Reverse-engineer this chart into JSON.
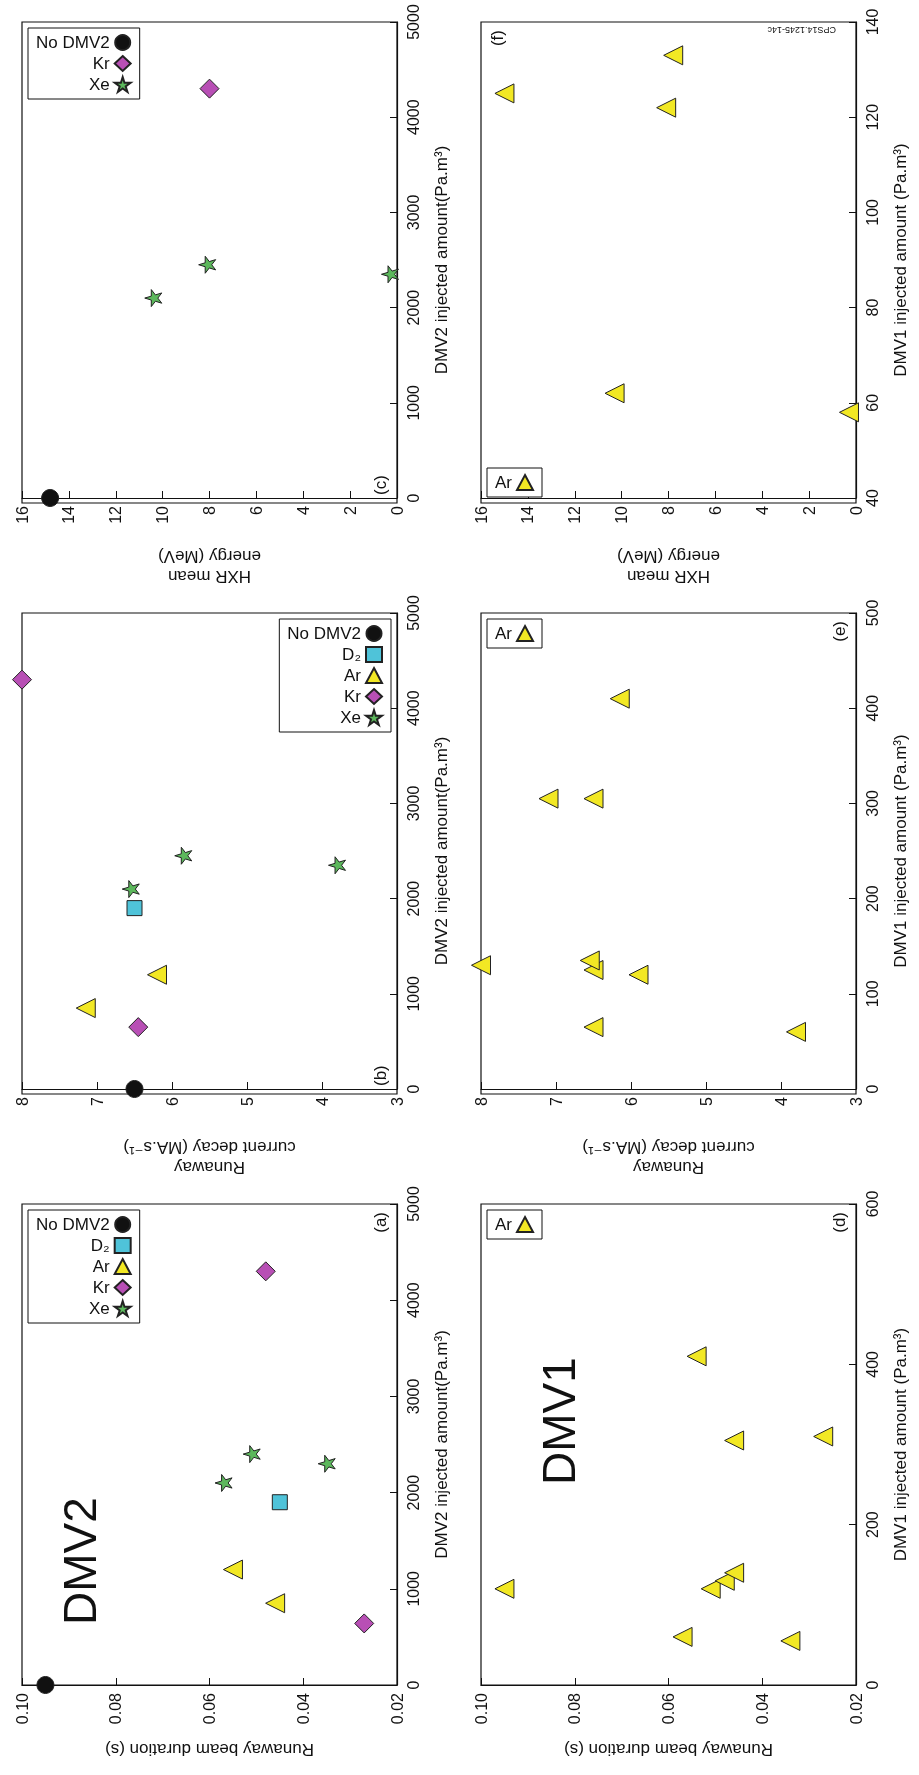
{
  "chart_data": [
    {
      "type": "scatter",
      "xlabel": "Runaway beam duration (s)",
      "ylabel": "DMV2 injected amount(Pa.m³)",
      "xlim": [
        0.1,
        0.02
      ],
      "xticks": [
        {
          "value": 0.1,
          "label": "0.10"
        },
        0.08,
        0.06,
        0.04,
        0.02
      ],
      "ylim": [
        0,
        5000
      ],
      "yticks": [
        0,
        1000,
        2000,
        3000,
        4000,
        5000
      ],
      "legend": "top left",
      "annotations": [
        "(a)",
        "DMV2"
      ],
      "series": [
        {
          "name": "No DMV2",
          "color": "#111111",
          "marker": "circle",
          "x": [
            0.095
          ],
          "values": [
            0
          ]
        },
        {
          "name": "D₂",
          "color": "#4fc3d9",
          "marker": "square",
          "x": [
            0.045
          ],
          "values": [
            1900
          ]
        },
        {
          "name": "Ar",
          "color": "#f2e824",
          "marker": "triangle",
          "x": [
            0.046,
            0.055
          ],
          "values": [
            850,
            1200
          ]
        },
        {
          "name": "Kr",
          "color": "#b84fb5",
          "marker": "diamond",
          "x": [
            0.027,
            0.048
          ],
          "values": [
            640,
            4300
          ]
        },
        {
          "name": "Xe",
          "color": "#5cb85c",
          "marker": "star",
          "x": [
            0.057,
            0.051,
            0.035
          ],
          "values": [
            2100,
            2400,
            2300
          ]
        }
      ]
    },
    {
      "type": "scatter",
      "xlabel": "Runaway\ncurrent decay (MA.s⁻¹)",
      "ylabel": "DMV2 injected amount(Pa.m³)",
      "xlim": [
        8,
        3
      ],
      "xticks": [
        8,
        7,
        6,
        5,
        4,
        3
      ],
      "ylim": [
        0,
        5000
      ],
      "yticks": [
        0,
        1000,
        2000,
        3000,
        4000,
        5000
      ],
      "legend": "top right",
      "annotations": [
        "(b)"
      ],
      "series": [
        {
          "name": "No DMV2",
          "color": "#111111",
          "marker": "circle",
          "x": [
            6.5
          ],
          "values": [
            0
          ]
        },
        {
          "name": "D₂",
          "color": "#4fc3d9",
          "marker": "square",
          "x": [
            6.5
          ],
          "values": [
            1900
          ]
        },
        {
          "name": "Ar",
          "color": "#f2e824",
          "marker": "triangle",
          "x": [
            7.15,
            6.2
          ],
          "values": [
            850,
            1200
          ]
        },
        {
          "name": "Kr",
          "color": "#b84fb5",
          "marker": "diamond",
          "x": [
            6.45,
            8.0
          ],
          "values": [
            650,
            4300
          ]
        },
        {
          "name": "Xe",
          "color": "#5cb85c",
          "marker": "star",
          "x": [
            6.55,
            5.85,
            3.8
          ],
          "values": [
            2100,
            2450,
            2350
          ]
        }
      ]
    },
    {
      "type": "scatter",
      "xlabel": "HXR mean\nenergy (MeV)",
      "ylabel": "DMV2 injected amount(Pa.m³)",
      "xlim": [
        16,
        0
      ],
      "xticks": [
        16,
        14,
        12,
        10,
        8,
        6,
        4,
        2,
        0
      ],
      "ylim": [
        0,
        5000
      ],
      "yticks": [
        0,
        1000,
        2000,
        3000,
        4000,
        5000
      ],
      "legend": "top left",
      "annotations": [
        "(c)"
      ],
      "series": [
        {
          "name": "No DMV2",
          "color": "#111111",
          "marker": "circle",
          "x": [
            14.8
          ],
          "values": [
            0
          ]
        },
        {
          "name": "Kr",
          "color": "#b84fb5",
          "marker": "diamond",
          "x": [
            8.0
          ],
          "values": [
            4300
          ]
        },
        {
          "name": "Xe",
          "color": "#5cb85c",
          "marker": "star",
          "x": [
            10.4,
            8.1,
            0.3
          ],
          "values": [
            2100,
            2450,
            2350
          ]
        }
      ]
    },
    {
      "type": "scatter",
      "xlabel": "Runaway beam duration (s)",
      "ylabel": "DMV1 injected amount (Pa.m³)",
      "xlim": [
        0.1,
        0.02
      ],
      "xticks": [
        {
          "value": 0.1,
          "label": "0.10"
        },
        0.08,
        0.06,
        0.04,
        0.02
      ],
      "ylim": [
        0,
        600
      ],
      "yticks": [
        0,
        200,
        400,
        600
      ],
      "legend": "top left",
      "annotations": [
        "(d)",
        "DMV1"
      ],
      "series": [
        {
          "name": "Ar",
          "color": "#f2e824",
          "marker": "triangle",
          "x": [
            0.057,
            0.034,
            0.095,
            0.051,
            0.048,
            0.046,
            0.046,
            0.027,
            0.054
          ],
          "values": [
            60,
            55,
            120,
            120,
            130,
            140,
            305,
            310,
            410
          ]
        }
      ]
    },
    {
      "type": "scatter",
      "xlabel": "Runaway\ncurrent decay (MA.s⁻¹)",
      "ylabel": "DMV1 injected amount (Pa.m³)",
      "xlim": [
        8,
        3
      ],
      "xticks": [
        8,
        7,
        6,
        5,
        4,
        3
      ],
      "ylim": [
        0,
        500
      ],
      "yticks": [
        0,
        100,
        200,
        300,
        400,
        500
      ],
      "legend": "top left",
      "annotations": [
        "(e)"
      ],
      "series": [
        {
          "name": "Ar",
          "color": "#f2e824",
          "marker": "triangle",
          "x": [
            3.8,
            6.5,
            5.9,
            6.5,
            6.55,
            8.0,
            7.1,
            6.5,
            6.15
          ],
          "values": [
            60,
            65,
            120,
            125,
            135,
            130,
            305,
            305,
            410
          ]
        }
      ]
    },
    {
      "type": "scatter",
      "xlabel": "HXR mean\nenergy (MeV)",
      "ylabel": "DMV1 injected amount (Pa.m³)",
      "xlim": [
        16,
        0
      ],
      "xticks": [
        16,
        14,
        12,
        10,
        8,
        6,
        4,
        2,
        0
      ],
      "ylim": [
        40,
        140
      ],
      "yticks": [
        40,
        60,
        80,
        100,
        120,
        140
      ],
      "legend": "bottom left",
      "annotations": [
        "(f)",
        "CPS14.1245-14c"
      ],
      "series": [
        {
          "name": "Ar",
          "color": "#f2e824",
          "marker": "triangle",
          "x": [
            0.3,
            10.3,
            8.1,
            15.0,
            7.8
          ],
          "values": [
            58,
            62,
            122,
            125,
            133
          ]
        }
      ]
    }
  ]
}
